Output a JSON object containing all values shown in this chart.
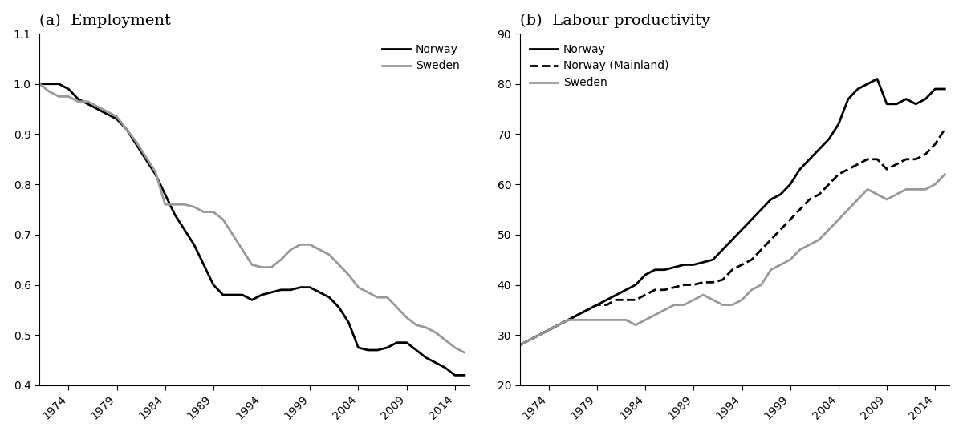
{
  "panel_a_title": "(a)  Employment",
  "panel_b_title": "(b)  Labour productivity",
  "emp_years": [
    1971,
    1972,
    1973,
    1974,
    1975,
    1976,
    1977,
    1978,
    1979,
    1980,
    1981,
    1982,
    1983,
    1984,
    1985,
    1986,
    1987,
    1988,
    1989,
    1990,
    1991,
    1992,
    1993,
    1994,
    1995,
    1996,
    1997,
    1998,
    1999,
    2000,
    2001,
    2002,
    2003,
    2004,
    2005,
    2006,
    2007,
    2008,
    2009,
    2010,
    2011,
    2012,
    2013,
    2014,
    2015
  ],
  "norway_emp": [
    1.0,
    1.0,
    1.0,
    0.99,
    0.97,
    0.96,
    0.95,
    0.94,
    0.93,
    0.91,
    0.88,
    0.85,
    0.82,
    0.78,
    0.74,
    0.71,
    0.68,
    0.64,
    0.6,
    0.58,
    0.58,
    0.58,
    0.57,
    0.58,
    0.585,
    0.59,
    0.59,
    0.595,
    0.595,
    0.585,
    0.575,
    0.555,
    0.525,
    0.475,
    0.47,
    0.47,
    0.475,
    0.485,
    0.485,
    0.47,
    0.455,
    0.445,
    0.435,
    0.42,
    0.42
  ],
  "sweden_emp": [
    1.0,
    0.985,
    0.975,
    0.975,
    0.965,
    0.965,
    0.955,
    0.945,
    0.935,
    0.91,
    0.885,
    0.855,
    0.825,
    0.76,
    0.76,
    0.76,
    0.755,
    0.745,
    0.745,
    0.73,
    0.7,
    0.67,
    0.64,
    0.635,
    0.635,
    0.65,
    0.67,
    0.68,
    0.68,
    0.67,
    0.66,
    0.64,
    0.62,
    0.595,
    0.585,
    0.575,
    0.575,
    0.555,
    0.535,
    0.52,
    0.515,
    0.505,
    0.49,
    0.475,
    0.465
  ],
  "prod_years": [
    1971,
    1972,
    1973,
    1974,
    1975,
    1976,
    1977,
    1978,
    1979,
    1980,
    1981,
    1982,
    1983,
    1984,
    1985,
    1986,
    1987,
    1988,
    1989,
    1990,
    1991,
    1992,
    1993,
    1994,
    1995,
    1996,
    1997,
    1998,
    1999,
    2000,
    2001,
    2002,
    2003,
    2004,
    2005,
    2006,
    2007,
    2008,
    2009,
    2010,
    2011,
    2012,
    2013,
    2014,
    2015
  ],
  "norway_prod": [
    28,
    29,
    30,
    31,
    32,
    33,
    34,
    35,
    36,
    37,
    38,
    39,
    40,
    42,
    43,
    43,
    43.5,
    44,
    44,
    44.5,
    45,
    47,
    49,
    51,
    53,
    55,
    57,
    58,
    60,
    63,
    65,
    67,
    69,
    72,
    77,
    79,
    80,
    81,
    76,
    76,
    77,
    76,
    77,
    79,
    79
  ],
  "norway_mainland_prod": [
    28,
    29,
    30,
    31,
    32,
    33,
    34,
    35,
    36,
    36,
    37,
    37,
    37,
    38,
    39,
    39,
    39.5,
    40,
    40,
    40.5,
    40.5,
    41,
    43,
    44,
    45,
    47,
    49,
    51,
    53,
    55,
    57,
    58,
    60,
    62,
    63,
    64,
    65,
    65,
    63,
    64,
    65,
    65,
    66,
    68,
    71
  ],
  "sweden_prod": [
    28,
    29,
    30,
    31,
    32,
    33,
    33,
    33,
    33,
    33,
    33,
    33,
    32,
    33,
    34,
    35,
    36,
    36,
    37,
    38,
    37,
    36,
    36,
    37,
    39,
    40,
    43,
    44,
    45,
    47,
    48,
    49,
    51,
    53,
    55,
    57,
    59,
    58,
    57,
    58,
    59,
    59,
    59,
    60,
    62
  ],
  "emp_ylim": [
    0.4,
    1.1
  ],
  "emp_yticks": [
    0.4,
    0.5,
    0.6,
    0.7,
    0.8,
    0.9,
    1.0,
    1.1
  ],
  "prod_ylim": [
    20,
    90
  ],
  "prod_yticks": [
    20,
    30,
    40,
    50,
    60,
    70,
    80,
    90
  ],
  "xticks": [
    1974,
    1979,
    1984,
    1989,
    1994,
    1999,
    2004,
    2009,
    2014
  ],
  "norway_color": "#000000",
  "sweden_color": "#999999",
  "background_color": "#ffffff",
  "line_width": 2.0,
  "figwidth": 12.0,
  "figheight": 5.43,
  "dpi": 100
}
